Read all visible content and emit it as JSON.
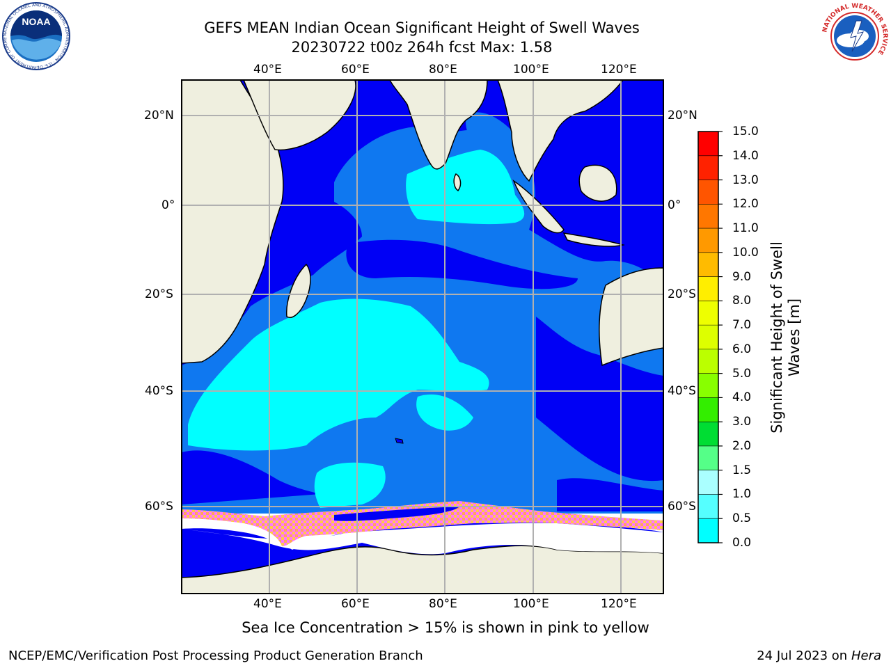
{
  "header": {
    "title_line1": "GEFS MEAN Indian Ocean Significant Height of Swell Waves",
    "title_line2": "20230722 t00z 264h fcst   Max: 1.58"
  },
  "logos": {
    "left": "NOAA",
    "left_ring_text": "NATIONAL OCEANIC AND ATMOSPHERIC ADMINISTRATION · U.S. DEPARTMENT OF COMMERCE",
    "right_ring_text": "NATIONAL WEATHER SERVICE"
  },
  "map": {
    "lon_labels": [
      "40°E",
      "60°E",
      "80°E",
      "100°E",
      "120°E"
    ],
    "lat_labels": [
      "20°N",
      "0°",
      "20°S",
      "40°S",
      "60°S"
    ],
    "colors": {
      "land": "#efefdf",
      "ocean_0_05": "#0000f5",
      "ocean_05_1": "#0f78f0",
      "ocean_1_15": "#00ffff",
      "grid": "#b0b0b0"
    }
  },
  "colorbar": {
    "label_line1": "Significant Height of Swell",
    "label_line2": "Waves [m]",
    "ticks": [
      "15.0",
      "14.0",
      "13.0",
      "12.0",
      "11.0",
      "10.0",
      "9.0",
      "8.0",
      "7.0",
      "6.0",
      "5.0",
      "4.0",
      "3.0",
      "2.0",
      "1.5",
      "1.0",
      "0.5",
      "0.0"
    ],
    "colors_top_to_bottom": [
      "#ff0000",
      "#ff2200",
      "#ff5500",
      "#ff7700",
      "#ff9900",
      "#ffbb00",
      "#ffee00",
      "#eeff00",
      "#ddff00",
      "#bbff00",
      "#88ff00",
      "#33ee00",
      "#00dd33",
      "#55ff88",
      "#aaffff",
      "#55ffff",
      "#00ffff",
      "#0088ff",
      "#0000ff"
    ]
  },
  "caption": "Sea Ice Concentration > 15% is shown in pink to yellow",
  "footer": {
    "left": "NCEP/EMC/Verification Post Processing Product Generation Branch",
    "right_date": "24 Jul 2023 on ",
    "right_host": "Hera"
  }
}
